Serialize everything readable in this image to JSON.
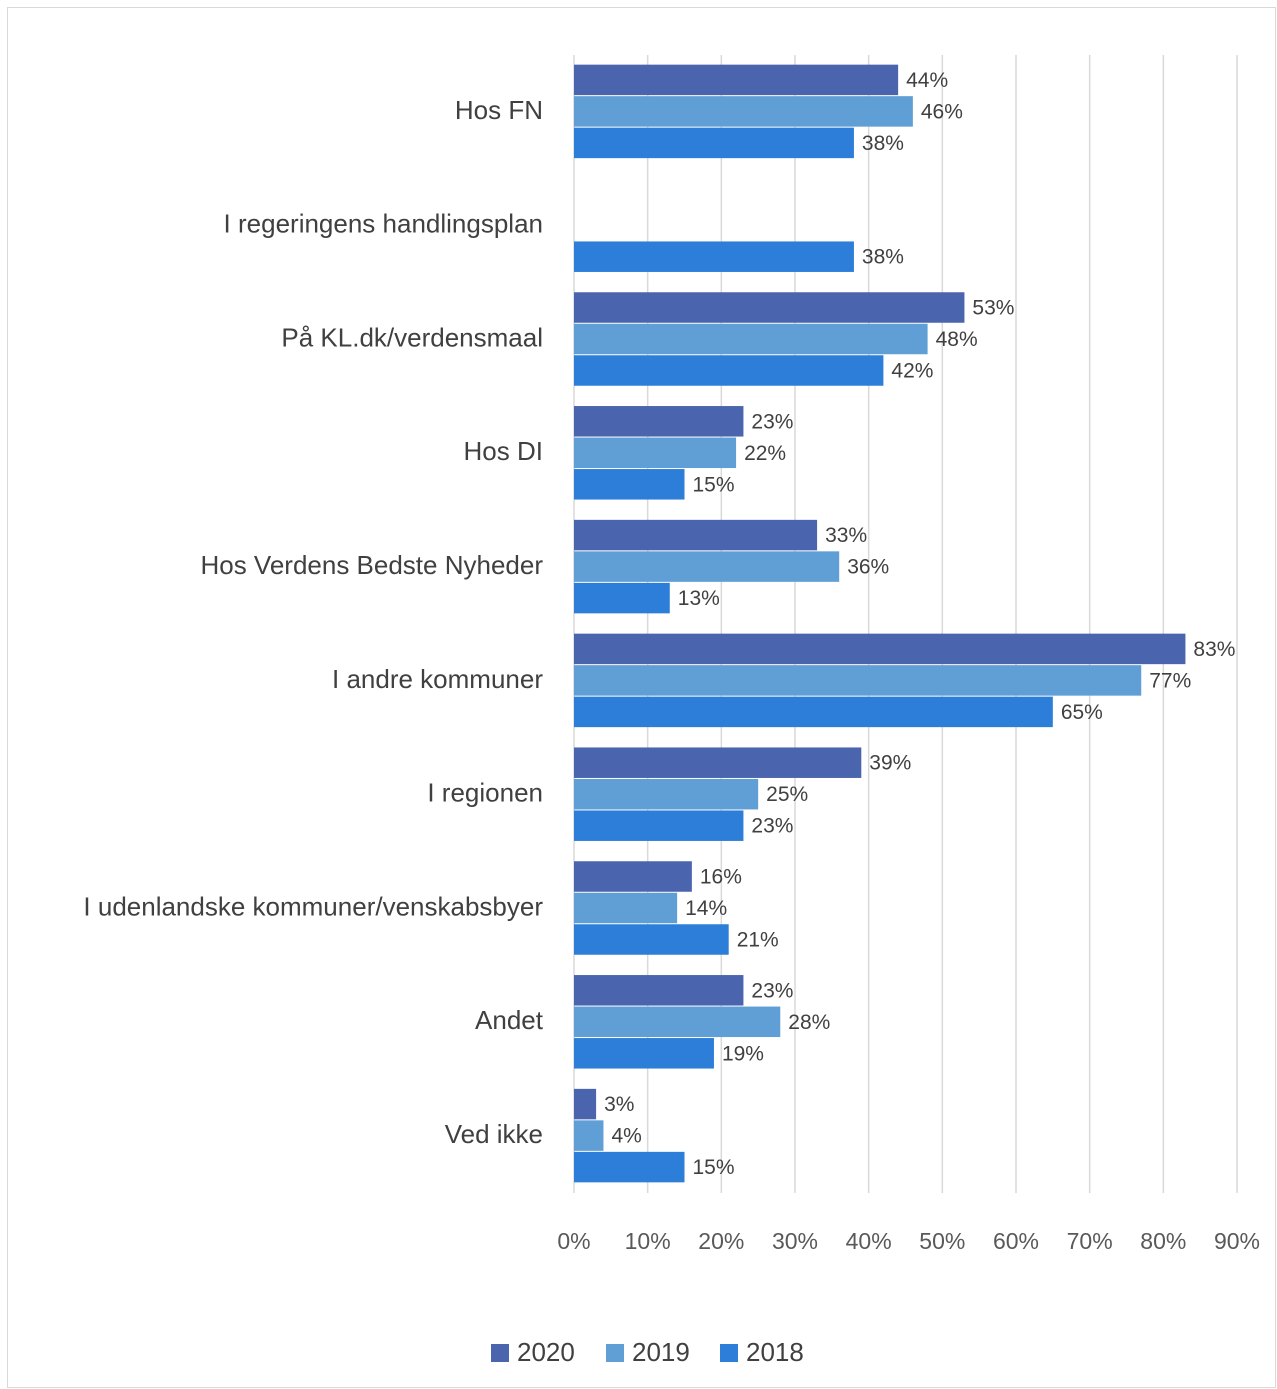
{
  "chart_data": {
    "type": "bar",
    "orientation": "horizontal",
    "categories": [
      "Hos FN",
      "I regeringens handlingsplan",
      "På KL.dk/verdensmaal",
      "Hos DI",
      "Hos Verdens Bedste Nyheder",
      "I andre kommuner",
      "I regionen",
      "I udenlandske kommuner/venskabsbyer",
      "Andet",
      "Ved ikke"
    ],
    "series": [
      {
        "name": "2020",
        "color": "#4a64ae",
        "values": [
          44,
          null,
          53,
          23,
          33,
          83,
          39,
          16,
          23,
          3
        ],
        "value_labels": [
          "44%",
          null,
          "53%",
          "23%",
          "33%",
          "83%",
          "39%",
          "16%",
          "23%",
          "3%"
        ]
      },
      {
        "name": "2019",
        "color": "#609fd6",
        "values": [
          46,
          null,
          48,
          22,
          36,
          77,
          25,
          14,
          28,
          4
        ],
        "value_labels": [
          "46%",
          null,
          "48%",
          "22%",
          "36%",
          "77%",
          "25%",
          "14%",
          "28%",
          "4%"
        ]
      },
      {
        "name": "2018",
        "color": "#2d7ed8",
        "values": [
          38,
          38,
          42,
          15,
          13,
          65,
          23,
          21,
          19,
          15
        ],
        "value_labels": [
          "38%",
          "38%",
          "42%",
          "15%",
          "13%",
          "65%",
          "23%",
          "21%",
          "19%",
          "15%"
        ]
      }
    ],
    "xlim": [
      0,
      90
    ],
    "xticks": [
      {
        "value": 0,
        "label": "0%"
      },
      {
        "value": 10,
        "label": "10%"
      },
      {
        "value": 20,
        "label": "20%"
      },
      {
        "value": 30,
        "label": "30%"
      },
      {
        "value": 40,
        "label": "40%"
      },
      {
        "value": 50,
        "label": "50%"
      },
      {
        "value": 60,
        "label": "60%"
      },
      {
        "value": 70,
        "label": "70%"
      },
      {
        "value": 80,
        "label": "80%"
      },
      {
        "value": 90,
        "label": "90%"
      }
    ],
    "grid": true,
    "legend": "bottom"
  }
}
